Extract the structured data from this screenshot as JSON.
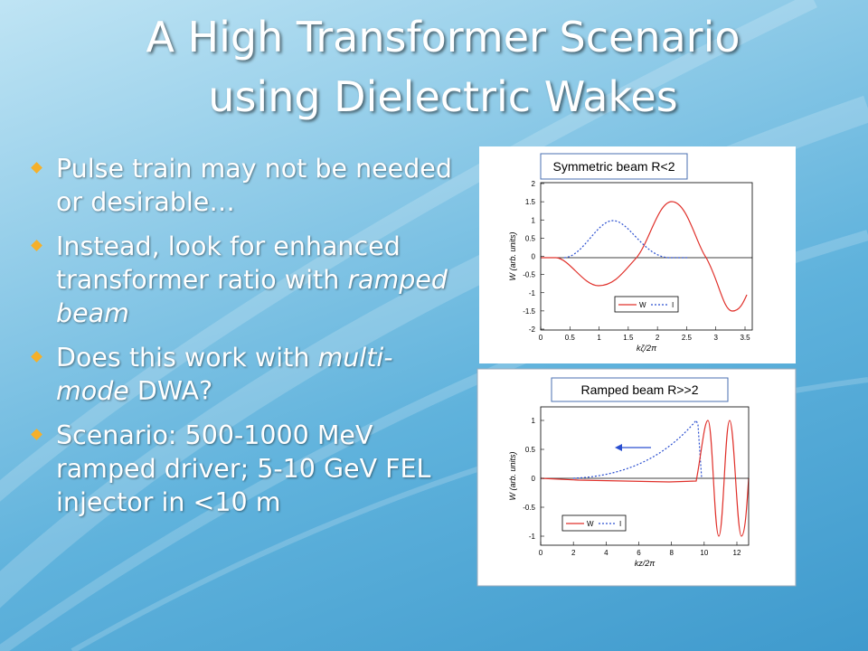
{
  "title": [
    "A High Transformer Scenario",
    "using Dielectric Wakes"
  ],
  "bullets": [
    [
      "Pulse train may not be needed or desirable…"
    ],
    [
      "Instead, look for enhanced transformer ratio with ",
      "ramped beam"
    ],
    [
      "Does this work with ",
      "multi-mode",
      " DWA?"
    ],
    [
      "Scenario: 500-1000 MeV ramped driver; 5-10 GeV FEL injector in <10 m"
    ]
  ],
  "plots": [
    {
      "label": "Symmetric beam R<2",
      "ylabel": "W (arb. units)",
      "xlabel": "kζ/2π",
      "yticks": [
        "2",
        "1.5",
        "1",
        "0.5",
        "0",
        "-0.5",
        "-1",
        "-1.5",
        "-2"
      ],
      "xticks": [
        "0",
        "0.5",
        "1",
        "1.5",
        "2",
        "2.5",
        "3",
        "3.5"
      ],
      "legend": [
        "W",
        "I"
      ]
    },
    {
      "label": "Ramped beam R>>2",
      "ylabel": "W (arb. units)",
      "xlabel": "kz/2π",
      "yticks": [
        "1",
        "0.5",
        "0",
        "-0.5",
        "-1"
      ],
      "xticks": [
        "0",
        "2",
        "4",
        "6",
        "8",
        "10",
        "12"
      ],
      "legend": [
        "W",
        "I"
      ]
    }
  ]
}
